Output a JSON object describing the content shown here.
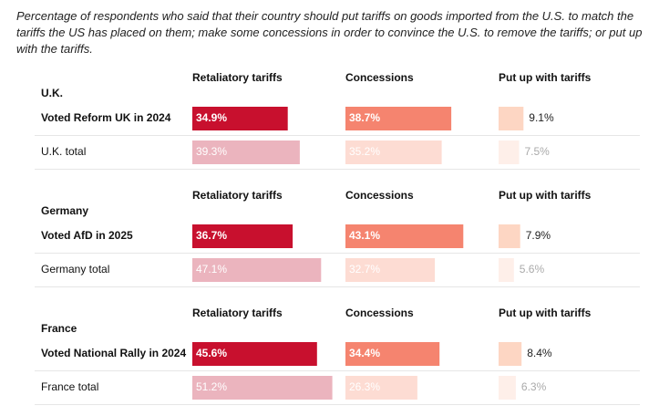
{
  "chart_data": {
    "type": "bar",
    "title": "Percentage of respondents who said that their country should put tariffs on goods imported from the U.S. to match the tariffs the US has placed on them; make some concessions in order to convince the U.S. to remove the tariffs; or put up with the tariffs.",
    "columns": [
      "Retaliatory tariffs",
      "Concessions",
      "Put up with tariffs"
    ],
    "row_colors": [
      [
        "#c8102e",
        "#f5846f",
        "#fdd6c3"
      ],
      [
        "#ebb4be",
        "#fddcd3",
        "#feefe9"
      ]
    ],
    "groups": [
      {
        "name": "U.K.",
        "rows": [
          {
            "name": "Voted Reform UK in 2024",
            "values": [
              34.9,
              38.7,
              9.1
            ],
            "value_labels": [
              "34.9%",
              "38.7%",
              "9.1%"
            ]
          },
          {
            "name": "U.K. total",
            "values": [
              39.3,
              35.2,
              7.5
            ],
            "value_labels": [
              "39.3%",
              "35.2%",
              "7.5%"
            ]
          }
        ]
      },
      {
        "name": "Germany",
        "rows": [
          {
            "name": "Voted AfD in 2025",
            "values": [
              36.7,
              43.1,
              7.9
            ],
            "value_labels": [
              "36.7%",
              "43.1%",
              "7.9%"
            ]
          },
          {
            "name": "Germany total",
            "values": [
              47.1,
              32.7,
              5.6
            ],
            "value_labels": [
              "47.1%",
              "32.7%",
              "5.6%"
            ]
          }
        ]
      },
      {
        "name": "France",
        "rows": [
          {
            "name": "Voted National Rally in 2024",
            "values": [
              45.6,
              34.4,
              8.4
            ],
            "value_labels": [
              "45.6%",
              "34.4%",
              "8.4%"
            ]
          },
          {
            "name": "France total",
            "values": [
              51.2,
              26.3,
              6.3
            ],
            "value_labels": [
              "51.2%",
              "26.3%",
              "6.3%"
            ]
          }
        ]
      }
    ]
  }
}
